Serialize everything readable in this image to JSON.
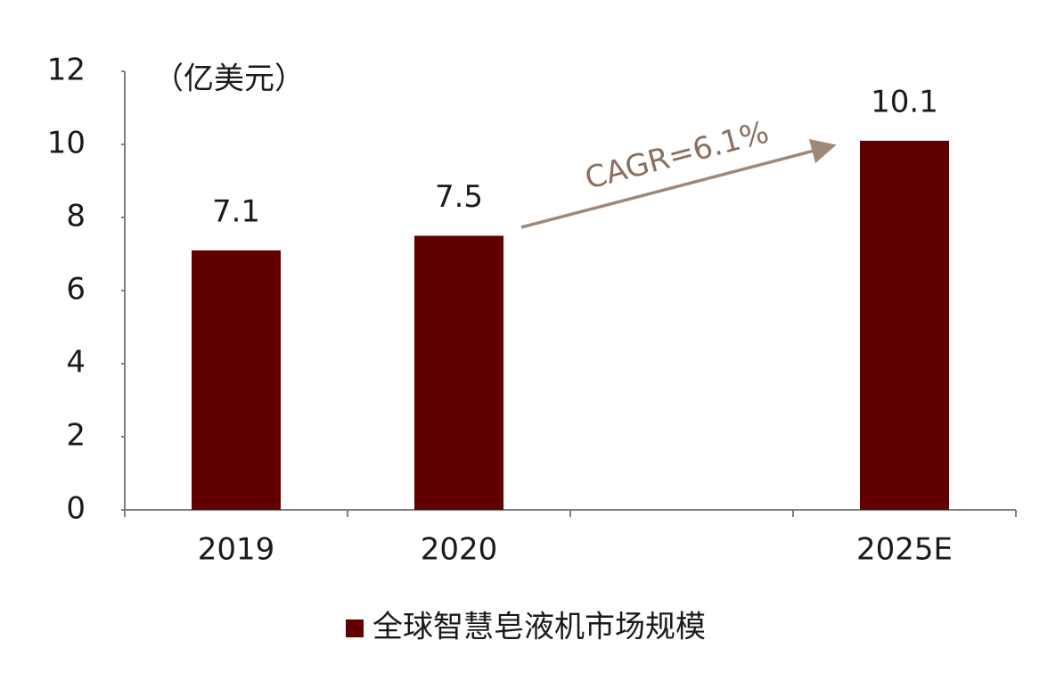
{
  "chart_data": {
    "type": "bar",
    "y_axis_label": "（亿美元）",
    "annotation": "CAGR=6.1%",
    "categories": [
      "2019",
      "2020",
      null,
      "2025E"
    ],
    "series": [
      {
        "name": "全球智慧皂液机市场规模",
        "color": "#600000",
        "values": [
          7.1,
          7.5,
          null,
          10.1
        ]
      }
    ],
    "ylim": [
      0,
      12
    ],
    "yticks": [
      0,
      2,
      4,
      6,
      8,
      10,
      12
    ],
    "grid": false,
    "legend": "bottom"
  }
}
